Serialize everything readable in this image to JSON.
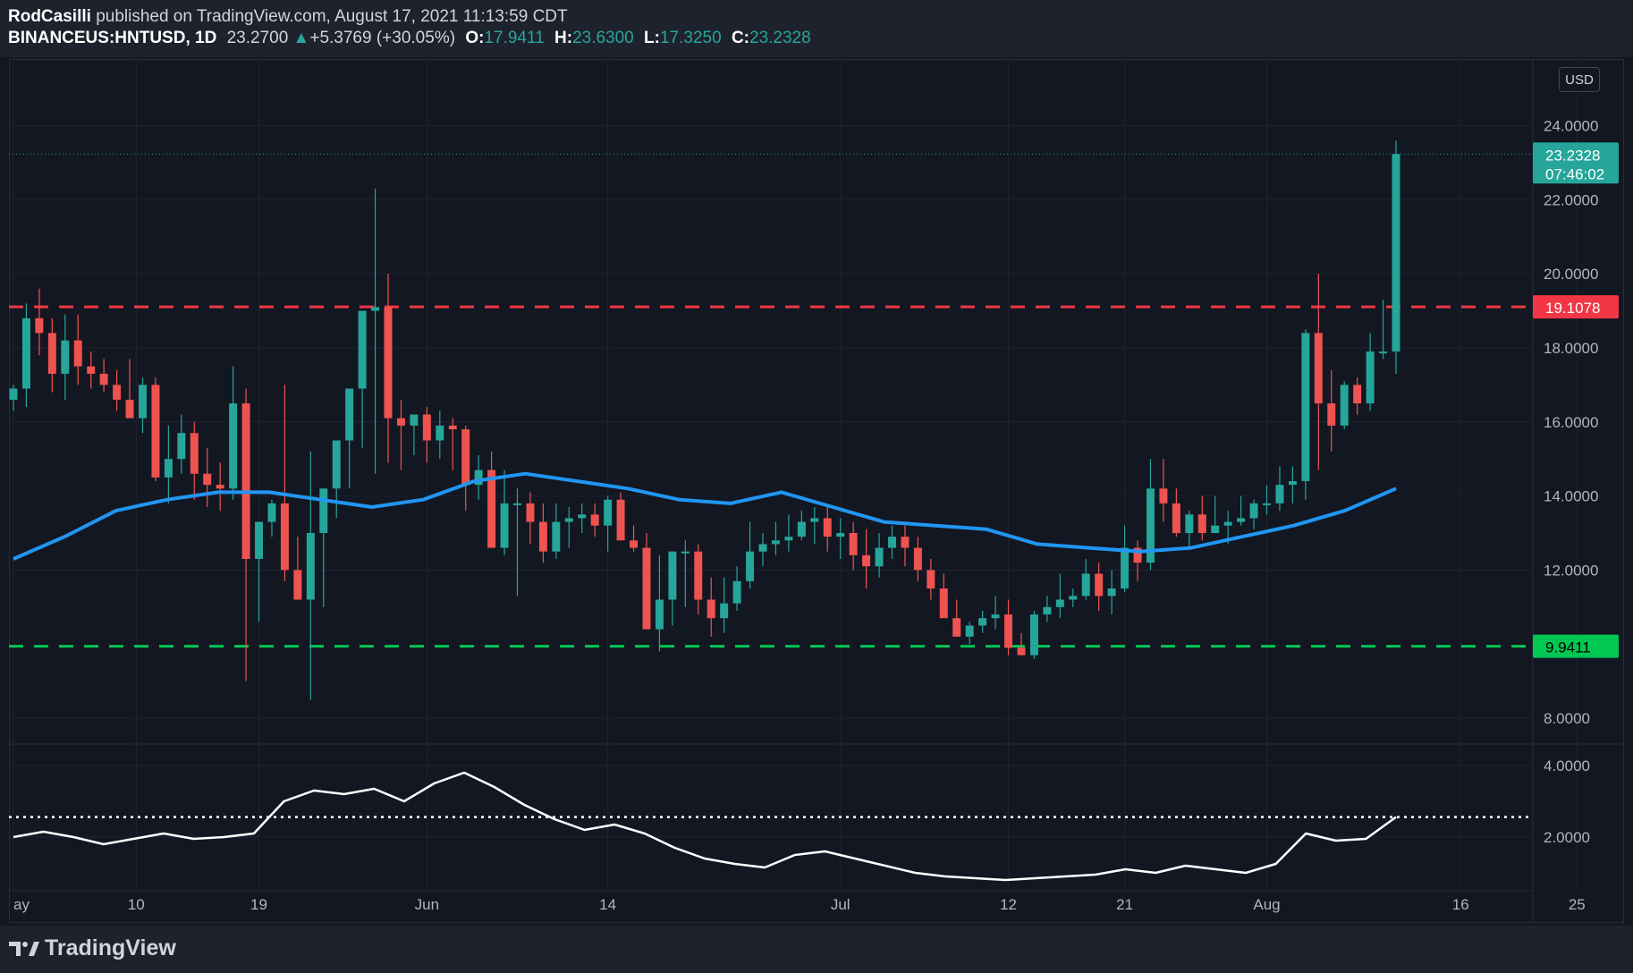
{
  "header": {
    "author": "RodCasilli",
    "published_text": "published on TradingView.com, August 17, 2021 11:13:59 CDT",
    "symbol": "BINANCEUS:HNTUSD, 1D",
    "last": "23.2700",
    "change": "+5.3769 (+30.05%)",
    "open_label": "O:",
    "open": "17.9411",
    "high_label": "H:",
    "high": "23.6300",
    "low_label": "L:",
    "low": "17.3250",
    "close_label": "C:",
    "close": "23.2328"
  },
  "price_axis": {
    "currency_button": "USD",
    "ticks": [
      "24.0000",
      "22.0000",
      "20.0000",
      "18.0000",
      "16.0000",
      "14.0000",
      "12.0000",
      "8.0000"
    ],
    "last_price_label": "23.2328",
    "countdown_label": "07:46:02",
    "resistance_label": "19.1078",
    "support_label": "9.9411"
  },
  "indicator_axis": {
    "ticks": [
      "4.0000",
      "2.0000"
    ]
  },
  "time_axis": {
    "ticks": [
      "ay",
      "10",
      "19",
      "Jun",
      "14",
      "Jul",
      "12",
      "21",
      "Aug",
      "16",
      "25"
    ]
  },
  "footer": {
    "brand": "TradingView"
  },
  "colors": {
    "up": "#26a69a",
    "down": "#ef5350",
    "ma": "#2196f3",
    "resistance": "#f23645",
    "support": "#00c853",
    "indicator": "#ffffff"
  },
  "chart_data": {
    "type": "candlestick",
    "symbol": "BINANCEUS:HNTUSD",
    "interval": "1D",
    "price_range": [
      7.3,
      25.8
    ],
    "resistance_level": 19.1078,
    "support_level": 9.9411,
    "last_price": 23.2328,
    "candles_ohlc": [
      [
        16.6,
        17.0,
        16.3,
        16.9
      ],
      [
        16.9,
        19.2,
        16.4,
        18.8
      ],
      [
        18.8,
        19.6,
        17.8,
        18.4
      ],
      [
        18.4,
        18.8,
        16.8,
        17.3
      ],
      [
        17.3,
        18.9,
        16.6,
        18.2
      ],
      [
        18.2,
        18.9,
        17.0,
        17.5
      ],
      [
        17.5,
        17.9,
        16.9,
        17.3
      ],
      [
        17.3,
        17.7,
        16.8,
        17.0
      ],
      [
        17.0,
        17.4,
        16.3,
        16.6
      ],
      [
        16.6,
        17.7,
        16.2,
        16.1
      ],
      [
        16.1,
        17.2,
        15.7,
        17.0
      ],
      [
        17.0,
        17.2,
        14.4,
        14.5
      ],
      [
        14.5,
        15.9,
        13.8,
        15.0
      ],
      [
        15.0,
        16.2,
        14.6,
        15.7
      ],
      [
        15.7,
        16.0,
        13.9,
        14.6
      ],
      [
        14.6,
        15.3,
        13.7,
        14.3
      ],
      [
        14.3,
        14.9,
        13.6,
        14.2
      ],
      [
        14.2,
        17.5,
        13.9,
        16.5
      ],
      [
        16.5,
        16.9,
        9.0,
        12.3
      ],
      [
        12.3,
        12.5,
        10.6,
        13.3
      ],
      [
        13.3,
        13.9,
        12.9,
        13.8
      ],
      [
        13.8,
        17.0,
        11.7,
        12.0
      ],
      [
        12.0,
        12.9,
        11.5,
        11.2
      ],
      [
        11.2,
        15.2,
        8.5,
        13.0
      ],
      [
        13.0,
        13.8,
        11.0,
        14.2
      ],
      [
        14.2,
        15.3,
        13.4,
        15.5
      ],
      [
        15.5,
        16.9,
        14.2,
        16.9
      ],
      [
        16.9,
        18.0,
        15.3,
        19.0
      ],
      [
        19.0,
        22.3,
        14.6,
        19.1
      ],
      [
        19.1,
        20.0,
        14.9,
        16.1
      ],
      [
        16.1,
        16.6,
        14.7,
        15.9
      ],
      [
        15.9,
        16.2,
        15.1,
        16.2
      ],
      [
        16.2,
        16.4,
        14.9,
        15.5
      ],
      [
        15.5,
        16.3,
        15.0,
        15.9
      ],
      [
        15.9,
        16.1,
        14.7,
        15.8
      ],
      [
        15.8,
        15.9,
        13.6,
        14.3
      ],
      [
        14.3,
        15.1,
        13.9,
        14.7
      ],
      [
        14.7,
        15.2,
        13.1,
        12.6
      ],
      [
        12.6,
        14.7,
        12.4,
        13.8
      ],
      [
        13.8,
        14.2,
        11.3,
        13.8
      ],
      [
        13.8,
        14.1,
        12.7,
        13.3
      ],
      [
        13.3,
        13.8,
        12.2,
        12.5
      ],
      [
        12.5,
        13.8,
        12.3,
        13.3
      ],
      [
        13.3,
        13.7,
        12.6,
        13.4
      ],
      [
        13.4,
        13.8,
        13.0,
        13.5
      ],
      [
        13.5,
        13.8,
        12.9,
        13.2
      ],
      [
        13.2,
        14.0,
        12.5,
        13.9
      ],
      [
        13.9,
        14.1,
        12.8,
        12.8
      ],
      [
        12.8,
        13.2,
        12.5,
        12.6
      ],
      [
        12.6,
        13.0,
        10.4,
        10.4
      ],
      [
        10.4,
        12.4,
        9.8,
        11.2
      ],
      [
        11.2,
        12.4,
        10.5,
        12.5
      ],
      [
        12.5,
        12.8,
        11.0,
        12.5
      ],
      [
        12.5,
        12.7,
        10.8,
        11.2
      ],
      [
        11.2,
        11.8,
        10.2,
        10.7
      ],
      [
        10.7,
        11.8,
        10.3,
        11.1
      ],
      [
        11.1,
        12.1,
        10.9,
        11.7
      ],
      [
        11.7,
        13.3,
        11.5,
        12.5
      ],
      [
        12.5,
        13.0,
        12.1,
        12.7
      ],
      [
        12.7,
        13.3,
        12.4,
        12.8
      ],
      [
        12.8,
        13.5,
        12.5,
        12.9
      ],
      [
        12.9,
        13.6,
        12.8,
        13.3
      ],
      [
        13.3,
        13.7,
        12.7,
        13.4
      ],
      [
        13.4,
        13.7,
        12.5,
        12.9
      ],
      [
        12.9,
        13.4,
        12.3,
        13.0
      ],
      [
        13.0,
        13.3,
        12.0,
        12.4
      ],
      [
        12.4,
        13.1,
        11.5,
        12.1
      ],
      [
        12.1,
        13.0,
        11.8,
        12.6
      ],
      [
        12.6,
        13.2,
        12.3,
        12.9
      ],
      [
        12.9,
        13.2,
        12.1,
        12.6
      ],
      [
        12.6,
        12.9,
        11.7,
        12.0
      ],
      [
        12.0,
        12.3,
        11.2,
        11.5
      ],
      [
        11.5,
        11.9,
        10.9,
        10.7
      ],
      [
        10.7,
        11.2,
        10.3,
        10.2
      ],
      [
        10.2,
        10.6,
        10.0,
        10.5
      ],
      [
        10.5,
        10.9,
        10.3,
        10.7
      ],
      [
        10.7,
        11.3,
        10.4,
        10.8
      ],
      [
        10.8,
        11.2,
        9.7,
        9.9
      ],
      [
        9.9,
        10.3,
        9.7,
        9.7
      ],
      [
        9.7,
        10.9,
        9.6,
        10.8
      ],
      [
        10.8,
        11.3,
        10.6,
        11.0
      ],
      [
        11.0,
        11.9,
        10.7,
        11.2
      ],
      [
        11.2,
        11.5,
        11.0,
        11.3
      ],
      [
        11.3,
        12.3,
        11.2,
        11.9
      ],
      [
        11.9,
        12.2,
        10.9,
        11.3
      ],
      [
        11.3,
        12.0,
        10.8,
        11.5
      ],
      [
        11.5,
        13.2,
        11.4,
        12.6
      ],
      [
        12.6,
        12.8,
        11.7,
        12.2
      ],
      [
        12.2,
        15.0,
        12.0,
        14.2
      ],
      [
        14.2,
        15.0,
        13.3,
        13.8
      ],
      [
        13.8,
        14.2,
        12.9,
        13.0
      ],
      [
        13.0,
        13.6,
        12.6,
        13.5
      ],
      [
        13.5,
        14.0,
        12.8,
        13.0
      ],
      [
        13.0,
        14.0,
        13.0,
        13.2
      ],
      [
        13.2,
        13.6,
        12.7,
        13.3
      ],
      [
        13.3,
        14.0,
        13.2,
        13.4
      ],
      [
        13.4,
        13.9,
        13.1,
        13.8
      ],
      [
        13.8,
        14.3,
        13.5,
        13.8
      ],
      [
        13.8,
        14.8,
        13.6,
        14.3
      ],
      [
        14.3,
        14.8,
        13.8,
        14.4
      ],
      [
        14.4,
        18.5,
        13.9,
        18.4
      ],
      [
        18.4,
        20.0,
        14.7,
        16.5
      ],
      [
        16.5,
        17.4,
        15.2,
        15.9
      ],
      [
        15.9,
        17.1,
        15.8,
        17.0
      ],
      [
        17.0,
        17.2,
        16.2,
        16.5
      ],
      [
        16.5,
        18.4,
        16.3,
        17.9
      ],
      [
        17.9,
        19.3,
        17.7,
        17.9
      ],
      [
        17.9,
        23.6,
        17.3,
        23.2328
      ]
    ],
    "moving_average": [
      [
        0,
        12.3
      ],
      [
        10,
        12.9
      ],
      [
        20,
        13.6
      ],
      [
        30,
        13.9
      ],
      [
        40,
        14.1
      ],
      [
        50,
        14.1
      ],
      [
        60,
        13.9
      ],
      [
        70,
        13.7
      ],
      [
        80,
        13.9
      ],
      [
        90,
        14.4
      ],
      [
        100,
        14.6
      ],
      [
        110,
        14.4
      ],
      [
        120,
        14.2
      ],
      [
        130,
        13.9
      ],
      [
        140,
        13.8
      ],
      [
        150,
        14.1
      ],
      [
        160,
        13.7
      ],
      [
        170,
        13.3
      ],
      [
        180,
        13.2
      ],
      [
        190,
        13.1
      ],
      [
        200,
        12.7
      ],
      [
        210,
        12.6
      ],
      [
        220,
        12.5
      ],
      [
        230,
        12.6
      ],
      [
        240,
        12.9
      ],
      [
        250,
        13.2
      ],
      [
        260,
        13.6
      ],
      [
        270,
        14.2
      ]
    ],
    "indicator_range": [
      0.5,
      4.6
    ],
    "indicator_level": 2.56,
    "indicator": [
      [
        0,
        2.0
      ],
      [
        8,
        2.15
      ],
      [
        16,
        2.0
      ],
      [
        24,
        1.8
      ],
      [
        32,
        1.95
      ],
      [
        40,
        2.1
      ],
      [
        48,
        1.95
      ],
      [
        56,
        2.0
      ],
      [
        64,
        2.1
      ],
      [
        72,
        3.0
      ],
      [
        80,
        3.3
      ],
      [
        88,
        3.2
      ],
      [
        96,
        3.35
      ],
      [
        104,
        3.0
      ],
      [
        112,
        3.5
      ],
      [
        120,
        3.8
      ],
      [
        128,
        3.4
      ],
      [
        136,
        2.9
      ],
      [
        144,
        2.5
      ],
      [
        152,
        2.2
      ],
      [
        160,
        2.35
      ],
      [
        168,
        2.1
      ],
      [
        176,
        1.7
      ],
      [
        184,
        1.4
      ],
      [
        192,
        1.25
      ],
      [
        200,
        1.15
      ],
      [
        208,
        1.5
      ],
      [
        216,
        1.6
      ],
      [
        224,
        1.4
      ],
      [
        232,
        1.2
      ],
      [
        240,
        1.0
      ],
      [
        248,
        0.9
      ],
      [
        256,
        0.85
      ],
      [
        264,
        0.8
      ],
      [
        272,
        0.85
      ],
      [
        280,
        0.9
      ],
      [
        288,
        0.95
      ],
      [
        296,
        1.1
      ],
      [
        304,
        1.0
      ],
      [
        312,
        1.2
      ],
      [
        320,
        1.1
      ],
      [
        328,
        1.0
      ],
      [
        336,
        1.25
      ],
      [
        344,
        2.1
      ],
      [
        352,
        1.9
      ],
      [
        360,
        1.95
      ],
      [
        368,
        2.56
      ]
    ]
  }
}
